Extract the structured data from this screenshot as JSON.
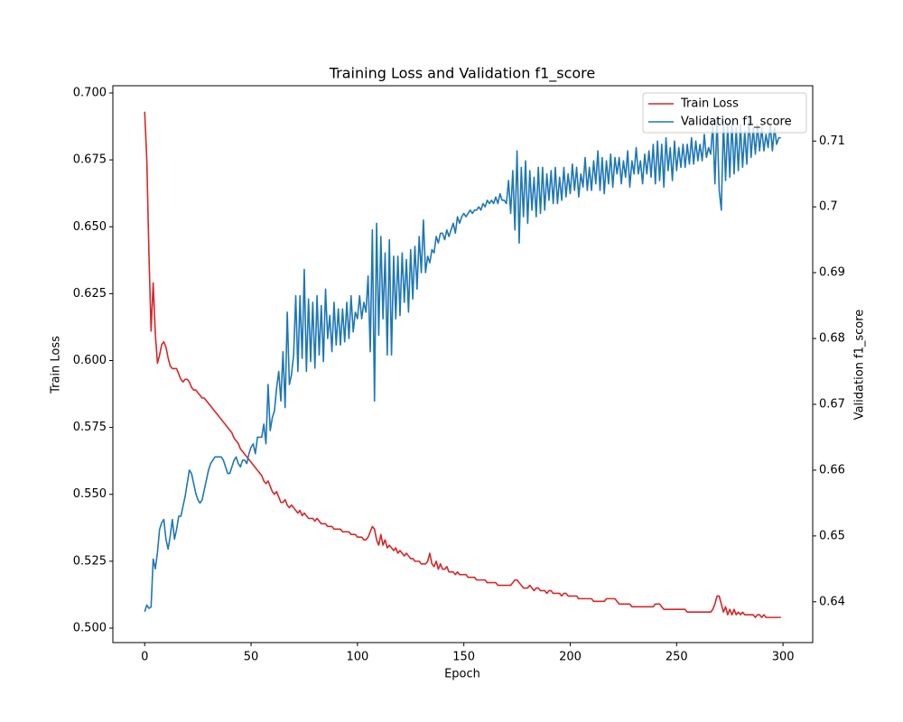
{
  "chart_data": {
    "type": "line",
    "title": "Training Loss and Validation f1_score",
    "xlabel": "Epoch",
    "ylabel": "Train Loss",
    "y2label": "Validation f1_score",
    "legend": "upper right",
    "xlim": [
      -14.95,
      313.95
    ],
    "xticks": [
      0,
      50,
      100,
      150,
      200,
      250,
      300
    ],
    "ylim": [
      0.4946,
      0.7027
    ],
    "yticks": [
      {
        "value": 0.5,
        "label": "0.500"
      },
      0.525,
      {
        "value": 0.55,
        "label": "0.550"
      },
      0.575,
      {
        "value": 0.6,
        "label": "0.600"
      },
      0.625,
      {
        "value": 0.65,
        "label": "0.650"
      },
      0.675,
      {
        "value": 0.7,
        "label": "0.700"
      }
    ],
    "y2lim": [
      0.6338,
      0.7184
    ],
    "y2ticks": [
      0.64,
      0.65,
      0.66,
      0.67,
      0.68,
      0.69,
      0.7,
      0.71
    ],
    "x": [
      0,
      1,
      2,
      3,
      4,
      5,
      6,
      7,
      8,
      9,
      10,
      11,
      12,
      13,
      14,
      15,
      16,
      17,
      18,
      19,
      20,
      21,
      22,
      23,
      24,
      25,
      26,
      27,
      28,
      29,
      30,
      31,
      32,
      33,
      34,
      35,
      36,
      37,
      38,
      39,
      40,
      41,
      42,
      43,
      44,
      45,
      46,
      47,
      48,
      49,
      50,
      51,
      52,
      53,
      54,
      55,
      56,
      57,
      58,
      59,
      60,
      61,
      62,
      63,
      64,
      65,
      66,
      67,
      68,
      69,
      70,
      71,
      72,
      73,
      74,
      75,
      76,
      77,
      78,
      79,
      80,
      81,
      82,
      83,
      84,
      85,
      86,
      87,
      88,
      89,
      90,
      91,
      92,
      93,
      94,
      95,
      96,
      97,
      98,
      99,
      100,
      101,
      102,
      103,
      104,
      105,
      106,
      107,
      108,
      109,
      110,
      111,
      112,
      113,
      114,
      115,
      116,
      117,
      118,
      119,
      120,
      121,
      122,
      123,
      124,
      125,
      126,
      127,
      128,
      129,
      130,
      131,
      132,
      133,
      134,
      135,
      136,
      137,
      138,
      139,
      140,
      141,
      142,
      143,
      144,
      145,
      146,
      147,
      148,
      149,
      150,
      151,
      152,
      153,
      154,
      155,
      156,
      157,
      158,
      159,
      160,
      161,
      162,
      163,
      164,
      165,
      166,
      167,
      168,
      169,
      170,
      171,
      172,
      173,
      174,
      175,
      176,
      177,
      178,
      179,
      180,
      181,
      182,
      183,
      184,
      185,
      186,
      187,
      188,
      189,
      190,
      191,
      192,
      193,
      194,
      195,
      196,
      197,
      198,
      199,
      200,
      201,
      202,
      203,
      204,
      205,
      206,
      207,
      208,
      209,
      210,
      211,
      212,
      213,
      214,
      215,
      216,
      217,
      218,
      219,
      220,
      221,
      222,
      223,
      224,
      225,
      226,
      227,
      228,
      229,
      230,
      231,
      232,
      233,
      234,
      235,
      236,
      237,
      238,
      239,
      240,
      241,
      242,
      243,
      244,
      245,
      246,
      247,
      248,
      249,
      250,
      251,
      252,
      253,
      254,
      255,
      256,
      257,
      258,
      259,
      260,
      261,
      262,
      263,
      264,
      265,
      266,
      267,
      268,
      269,
      270,
      271,
      272,
      273,
      274,
      275,
      276,
      277,
      278,
      279,
      280,
      281,
      282,
      283,
      284,
      285,
      286,
      287,
      288,
      289,
      290,
      291,
      292,
      293,
      294,
      295,
      296,
      297,
      298,
      299
    ],
    "series": [
      {
        "name": "Train Loss",
        "color": "#d62728",
        "values": [
          0.693,
          0.675,
          0.64,
          0.611,
          0.629,
          0.61,
          0.599,
          0.602,
          0.606,
          0.607,
          0.605,
          0.601,
          0.598,
          0.597,
          0.597,
          0.597,
          0.595,
          0.593,
          0.592,
          0.593,
          0.593,
          0.592,
          0.59,
          0.589,
          0.589,
          0.588,
          0.587,
          0.586,
          0.586,
          0.585,
          0.584,
          0.583,
          0.582,
          0.581,
          0.58,
          0.579,
          0.578,
          0.577,
          0.576,
          0.575,
          0.574,
          0.573,
          0.571,
          0.57,
          0.569,
          0.567,
          0.566,
          0.565,
          0.564,
          0.563,
          0.562,
          0.561,
          0.56,
          0.559,
          0.558,
          0.557,
          0.555,
          0.554,
          0.555,
          0.553,
          0.551,
          0.55,
          0.551,
          0.549,
          0.547,
          0.547,
          0.548,
          0.546,
          0.545,
          0.546,
          0.545,
          0.544,
          0.543,
          0.544,
          0.542,
          0.543,
          0.542,
          0.541,
          0.541,
          0.541,
          0.54,
          0.541,
          0.54,
          0.539,
          0.539,
          0.539,
          0.538,
          0.538,
          0.538,
          0.537,
          0.537,
          0.537,
          0.537,
          0.536,
          0.536,
          0.536,
          0.536,
          0.535,
          0.535,
          0.535,
          0.534,
          0.534,
          0.534,
          0.533,
          0.533,
          0.534,
          0.536,
          0.538,
          0.537,
          0.533,
          0.531,
          0.535,
          0.531,
          0.533,
          0.53,
          0.531,
          0.53,
          0.529,
          0.53,
          0.528,
          0.529,
          0.528,
          0.527,
          0.528,
          0.527,
          0.526,
          0.526,
          0.525,
          0.525,
          0.525,
          0.524,
          0.524,
          0.524,
          0.525,
          0.528,
          0.524,
          0.523,
          0.525,
          0.522,
          0.524,
          0.522,
          0.522,
          0.523,
          0.521,
          0.521,
          0.521,
          0.52,
          0.521,
          0.52,
          0.52,
          0.52,
          0.52,
          0.519,
          0.519,
          0.519,
          0.519,
          0.518,
          0.518,
          0.518,
          0.518,
          0.518,
          0.517,
          0.517,
          0.517,
          0.517,
          0.517,
          0.516,
          0.516,
          0.516,
          0.516,
          0.516,
          0.516,
          0.516,
          0.517,
          0.518,
          0.518,
          0.517,
          0.516,
          0.515,
          0.515,
          0.515,
          0.516,
          0.515,
          0.514,
          0.515,
          0.515,
          0.514,
          0.514,
          0.514,
          0.513,
          0.514,
          0.514,
          0.513,
          0.513,
          0.513,
          0.513,
          0.512,
          0.513,
          0.513,
          0.512,
          0.512,
          0.512,
          0.512,
          0.512,
          0.511,
          0.511,
          0.511,
          0.511,
          0.511,
          0.511,
          0.511,
          0.51,
          0.51,
          0.51,
          0.51,
          0.51,
          0.51,
          0.511,
          0.511,
          0.511,
          0.511,
          0.511,
          0.51,
          0.509,
          0.509,
          0.509,
          0.509,
          0.509,
          0.509,
          0.508,
          0.508,
          0.508,
          0.508,
          0.508,
          0.508,
          0.508,
          0.508,
          0.508,
          0.508,
          0.508,
          0.509,
          0.509,
          0.509,
          0.508,
          0.507,
          0.507,
          0.507,
          0.507,
          0.507,
          0.507,
          0.507,
          0.507,
          0.507,
          0.507,
          0.507,
          0.506,
          0.506,
          0.506,
          0.506,
          0.506,
          0.506,
          0.506,
          0.506,
          0.506,
          0.506,
          0.506,
          0.506,
          0.507,
          0.509,
          0.512,
          0.512,
          0.509,
          0.506,
          0.508,
          0.505,
          0.507,
          0.505,
          0.507,
          0.505,
          0.506,
          0.505,
          0.506,
          0.505,
          0.505,
          0.505,
          0.505,
          0.505,
          0.504,
          0.505,
          0.505,
          0.504,
          0.505,
          0.504,
          0.504,
          0.504,
          0.504,
          0.504,
          0.504,
          0.504,
          0.504
        ]
      },
      {
        "name": "Validation f1_score",
        "color": "#1f77b4",
        "axis": "y2",
        "values": [
          0.6385,
          0.6395,
          0.639,
          0.6392,
          0.6465,
          0.645,
          0.6475,
          0.651,
          0.652,
          0.6525,
          0.6495,
          0.648,
          0.65,
          0.6525,
          0.6495,
          0.651,
          0.653,
          0.653,
          0.6545,
          0.656,
          0.658,
          0.66,
          0.6595,
          0.658,
          0.6565,
          0.6555,
          0.655,
          0.6555,
          0.657,
          0.6585,
          0.66,
          0.661,
          0.6615,
          0.662,
          0.662,
          0.662,
          0.662,
          0.6615,
          0.6605,
          0.6595,
          0.6595,
          0.6605,
          0.6615,
          0.662,
          0.661,
          0.6605,
          0.6615,
          0.6615,
          0.661,
          0.6625,
          0.6635,
          0.664,
          0.6625,
          0.665,
          0.665,
          0.665,
          0.667,
          0.664,
          0.673,
          0.666,
          0.668,
          0.669,
          0.6725,
          0.675,
          0.6705,
          0.678,
          0.6695,
          0.684,
          0.673,
          0.6745,
          0.6775,
          0.6865,
          0.675,
          0.6865,
          0.677,
          0.6905,
          0.675,
          0.686,
          0.6765,
          0.6855,
          0.6755,
          0.6865,
          0.6775,
          0.685,
          0.6765,
          0.6875,
          0.68,
          0.6835,
          0.678,
          0.6855,
          0.679,
          0.6845,
          0.679,
          0.6845,
          0.6795,
          0.6855,
          0.68,
          0.6865,
          0.681,
          0.684,
          0.683,
          0.6865,
          0.683,
          0.6855,
          0.684,
          0.6895,
          0.678,
          0.6965,
          0.6705,
          0.6975,
          0.6805,
          0.6955,
          0.683,
          0.693,
          0.6775,
          0.695,
          0.6775,
          0.6925,
          0.683,
          0.6925,
          0.6835,
          0.693,
          0.6855,
          0.692,
          0.684,
          0.6935,
          0.686,
          0.694,
          0.6875,
          0.6955,
          0.69,
          0.698,
          0.69,
          0.6925,
          0.6915,
          0.6935,
          0.693,
          0.6955,
          0.6945,
          0.696,
          0.696,
          0.695,
          0.6965,
          0.6955,
          0.6965,
          0.6975,
          0.696,
          0.6985,
          0.6975,
          0.6985,
          0.699,
          0.6985,
          0.699,
          0.6995,
          0.699,
          0.6995,
          0.6995,
          0.7,
          0.6995,
          0.7005,
          0.7,
          0.701,
          0.7005,
          0.701,
          0.7005,
          0.7015,
          0.7005,
          0.702,
          0.701,
          0.701,
          0.7005,
          0.704,
          0.699,
          0.7055,
          0.6965,
          0.7085,
          0.6945,
          0.706,
          0.6985,
          0.707,
          0.6975,
          0.7055,
          0.6995,
          0.7045,
          0.6985,
          0.706,
          0.699,
          0.706,
          0.6995,
          0.705,
          0.701,
          0.7055,
          0.7005,
          0.706,
          0.7005,
          0.7045,
          0.701,
          0.706,
          0.7015,
          0.705,
          0.702,
          0.7065,
          0.7025,
          0.706,
          0.7015,
          0.705,
          0.703,
          0.7075,
          0.7025,
          0.706,
          0.7025,
          0.707,
          0.7035,
          0.7085,
          0.7025,
          0.7075,
          0.702,
          0.707,
          0.7035,
          0.708,
          0.703,
          0.7075,
          0.705,
          0.7075,
          0.7035,
          0.707,
          0.7045,
          0.7085,
          0.703,
          0.707,
          0.705,
          0.709,
          0.705,
          0.707,
          0.7035,
          0.708,
          0.705,
          0.7085,
          0.7045,
          0.7095,
          0.7035,
          0.71,
          0.704,
          0.7095,
          0.703,
          0.7105,
          0.7055,
          0.709,
          0.704,
          0.71,
          0.7055,
          0.709,
          0.706,
          0.7095,
          0.706,
          0.7095,
          0.7065,
          0.7105,
          0.7065,
          0.71,
          0.707,
          0.7095,
          0.707,
          0.711,
          0.7075,
          0.709,
          0.708,
          0.7125,
          0.7035,
          0.7135,
          0.7025,
          0.6995,
          0.713,
          0.704,
          0.7125,
          0.7045,
          0.713,
          0.705,
          0.712,
          0.7055,
          0.7125,
          0.706,
          0.7115,
          0.7065,
          0.7135,
          0.7075,
          0.712,
          0.708,
          0.7125,
          0.7085,
          0.712,
          0.7085,
          0.711,
          0.709,
          0.7125,
          0.7085,
          0.712,
          0.7095,
          0.7105,
          0.7105
        ]
      }
    ]
  }
}
